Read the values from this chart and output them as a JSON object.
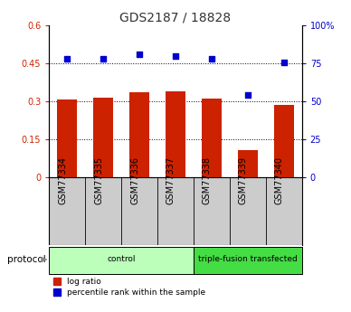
{
  "title": "GDS2187 / 18828",
  "samples": [
    "GSM77334",
    "GSM77335",
    "GSM77336",
    "GSM77337",
    "GSM77338",
    "GSM77339",
    "GSM77340"
  ],
  "log_ratio": [
    0.305,
    0.315,
    0.335,
    0.34,
    0.31,
    0.105,
    0.285
  ],
  "percentile_rank": [
    0.775,
    0.775,
    0.805,
    0.795,
    0.775,
    0.54,
    0.755
  ],
  "bar_color": "#cc2200",
  "dot_color": "#0000cc",
  "ylim_left": [
    0,
    0.6
  ],
  "ylim_right": [
    0,
    1.0
  ],
  "yticks_left": [
    0,
    0.15,
    0.3,
    0.45,
    0.6
  ],
  "ytick_labels_left": [
    "0",
    "0.15",
    "0.3",
    "0.45",
    "0.6"
  ],
  "yticks_right": [
    0,
    0.25,
    0.5,
    0.75,
    1.0
  ],
  "ytick_labels_right": [
    "0",
    "25",
    "50",
    "75",
    "100%"
  ],
  "groups": [
    {
      "label": "control",
      "start": 0,
      "end": 3,
      "color": "#bbffbb"
    },
    {
      "label": "triple-fusion transfected",
      "start": 4,
      "end": 6,
      "color": "#44dd44"
    }
  ],
  "protocol_label": "protocol",
  "legend_items": [
    {
      "label": "log ratio",
      "color": "#cc2200"
    },
    {
      "label": "percentile rank within the sample",
      "color": "#0000cc"
    }
  ],
  "background_color": "#ffffff",
  "tick_area_bg": "#cccccc",
  "title_fontsize": 10,
  "tick_fontsize": 7,
  "label_fontsize": 7
}
